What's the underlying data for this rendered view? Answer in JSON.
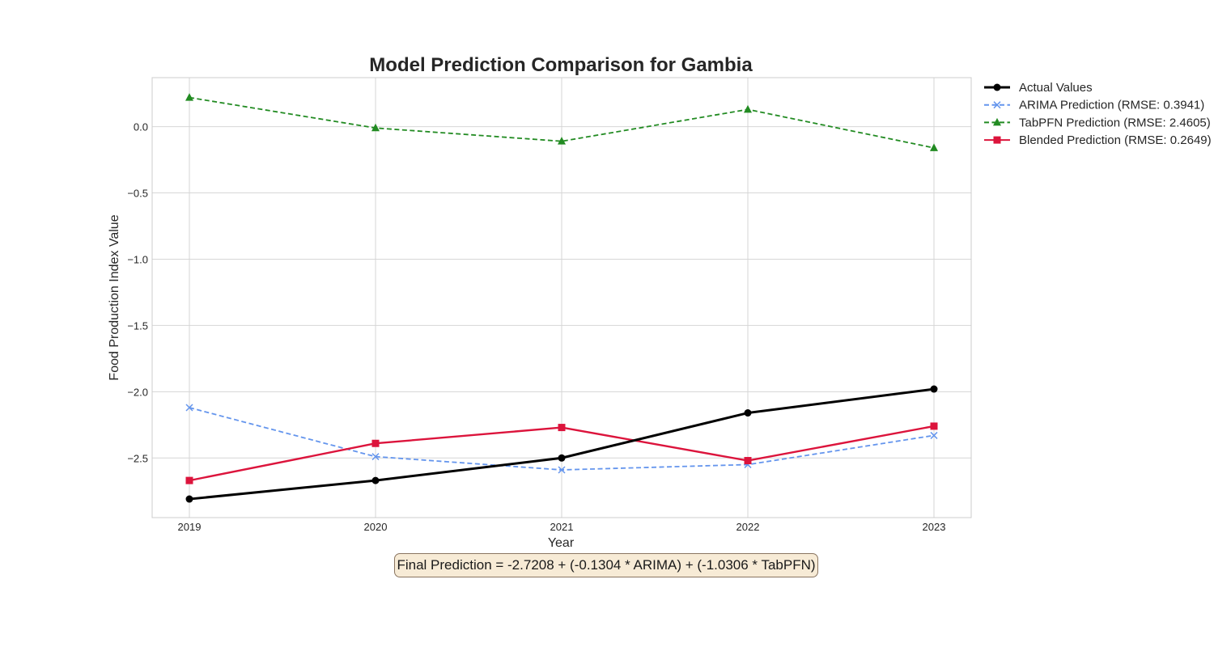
{
  "chart_data": {
    "type": "line",
    "title": "Model Prediction Comparison for Gambia",
    "xlabel": "Year",
    "ylabel": "Food Production Index Value",
    "x": [
      "2019",
      "2020",
      "2021",
      "2022",
      "2023"
    ],
    "xlim": [
      2018.8,
      2023.2
    ],
    "ylim": [
      -2.95,
      0.37
    ],
    "yticks": [
      0.0,
      -0.5,
      -1.0,
      -1.5,
      -2.0,
      -2.5
    ],
    "ytick_labels": [
      "0.0",
      "−0.5",
      "−1.0",
      "−1.5",
      "−2.0",
      "−2.5"
    ],
    "grid": true,
    "legend_position": "outside-top-right",
    "series": [
      {
        "name": "Actual Values",
        "color": "#000000",
        "style": "solid",
        "marker": "circle",
        "values": [
          -2.81,
          -2.67,
          -2.5,
          -2.16,
          -1.98
        ]
      },
      {
        "name": "ARIMA Prediction (RMSE: 0.3941)",
        "color": "#6495ED",
        "style": "dashed",
        "marker": "x",
        "values": [
          -2.12,
          -2.49,
          -2.59,
          -2.55,
          -2.33
        ]
      },
      {
        "name": "TabPFN Prediction (RMSE: 2.4605)",
        "color": "#228B22",
        "style": "dashed",
        "marker": "triangle",
        "values": [
          0.22,
          -0.01,
          -0.11,
          0.13,
          -0.16
        ]
      },
      {
        "name": "Blended Prediction (RMSE: 0.2649)",
        "color": "#DC143C",
        "style": "solid",
        "marker": "square",
        "values": [
          -2.67,
          -2.39,
          -2.27,
          -2.52,
          -2.26
        ]
      }
    ],
    "annotation": "Final Prediction = -2.7208 + (-0.1304 * ARIMA) + (-1.0306 * TabPFN)"
  }
}
